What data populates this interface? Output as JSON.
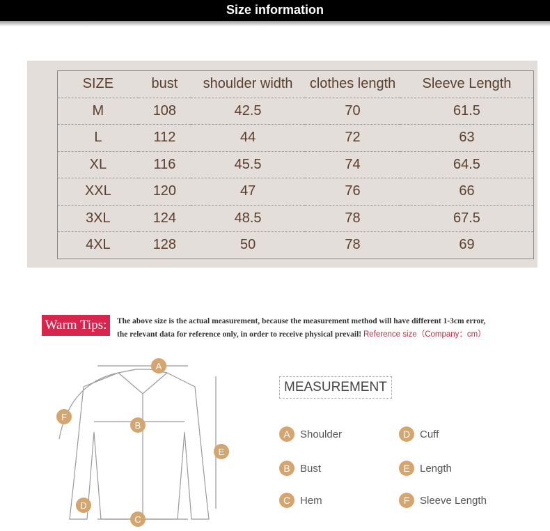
{
  "header": {
    "title": "Size information"
  },
  "table": {
    "headers": [
      "SIZE",
      "bust",
      "shoulder  width",
      "clothes length",
      "Sleeve  Length"
    ],
    "rows": [
      [
        "M",
        "108",
        "42.5",
        "70",
        "61.5"
      ],
      [
        "L",
        "112",
        "44",
        "72",
        "63"
      ],
      [
        "XL",
        "116",
        "45.5",
        "74",
        "64.5"
      ],
      [
        "XXL",
        "120",
        "47",
        "76",
        "66"
      ],
      [
        "3XL",
        "124",
        "48.5",
        "78",
        "67.5"
      ],
      [
        "4XL",
        "128",
        "50",
        "78",
        "69"
      ]
    ]
  },
  "tips": {
    "label": "Warm Tips:",
    "line1": "The above size is the actual measurement, because the measurement method will have different 1-3cm error,",
    "line2": "the relevant data for reference only, in order to receive physical prevail!",
    "ref": "Reference size（Company：cm）"
  },
  "measurement": {
    "title": "MEASUREMENT",
    "items": [
      {
        "letter": "A",
        "label": "Shoulder"
      },
      {
        "letter": "B",
        "label": "Bust"
      },
      {
        "letter": "C",
        "label": "Hem"
      },
      {
        "letter": "D",
        "label": "Cuff"
      },
      {
        "letter": "E",
        "label": "Length"
      },
      {
        "letter": "F",
        "label": "Sleeve Length"
      }
    ]
  },
  "colors": {
    "accent": "#d9244e",
    "badge": "#d4a56f",
    "text": "#5a3e2b"
  }
}
